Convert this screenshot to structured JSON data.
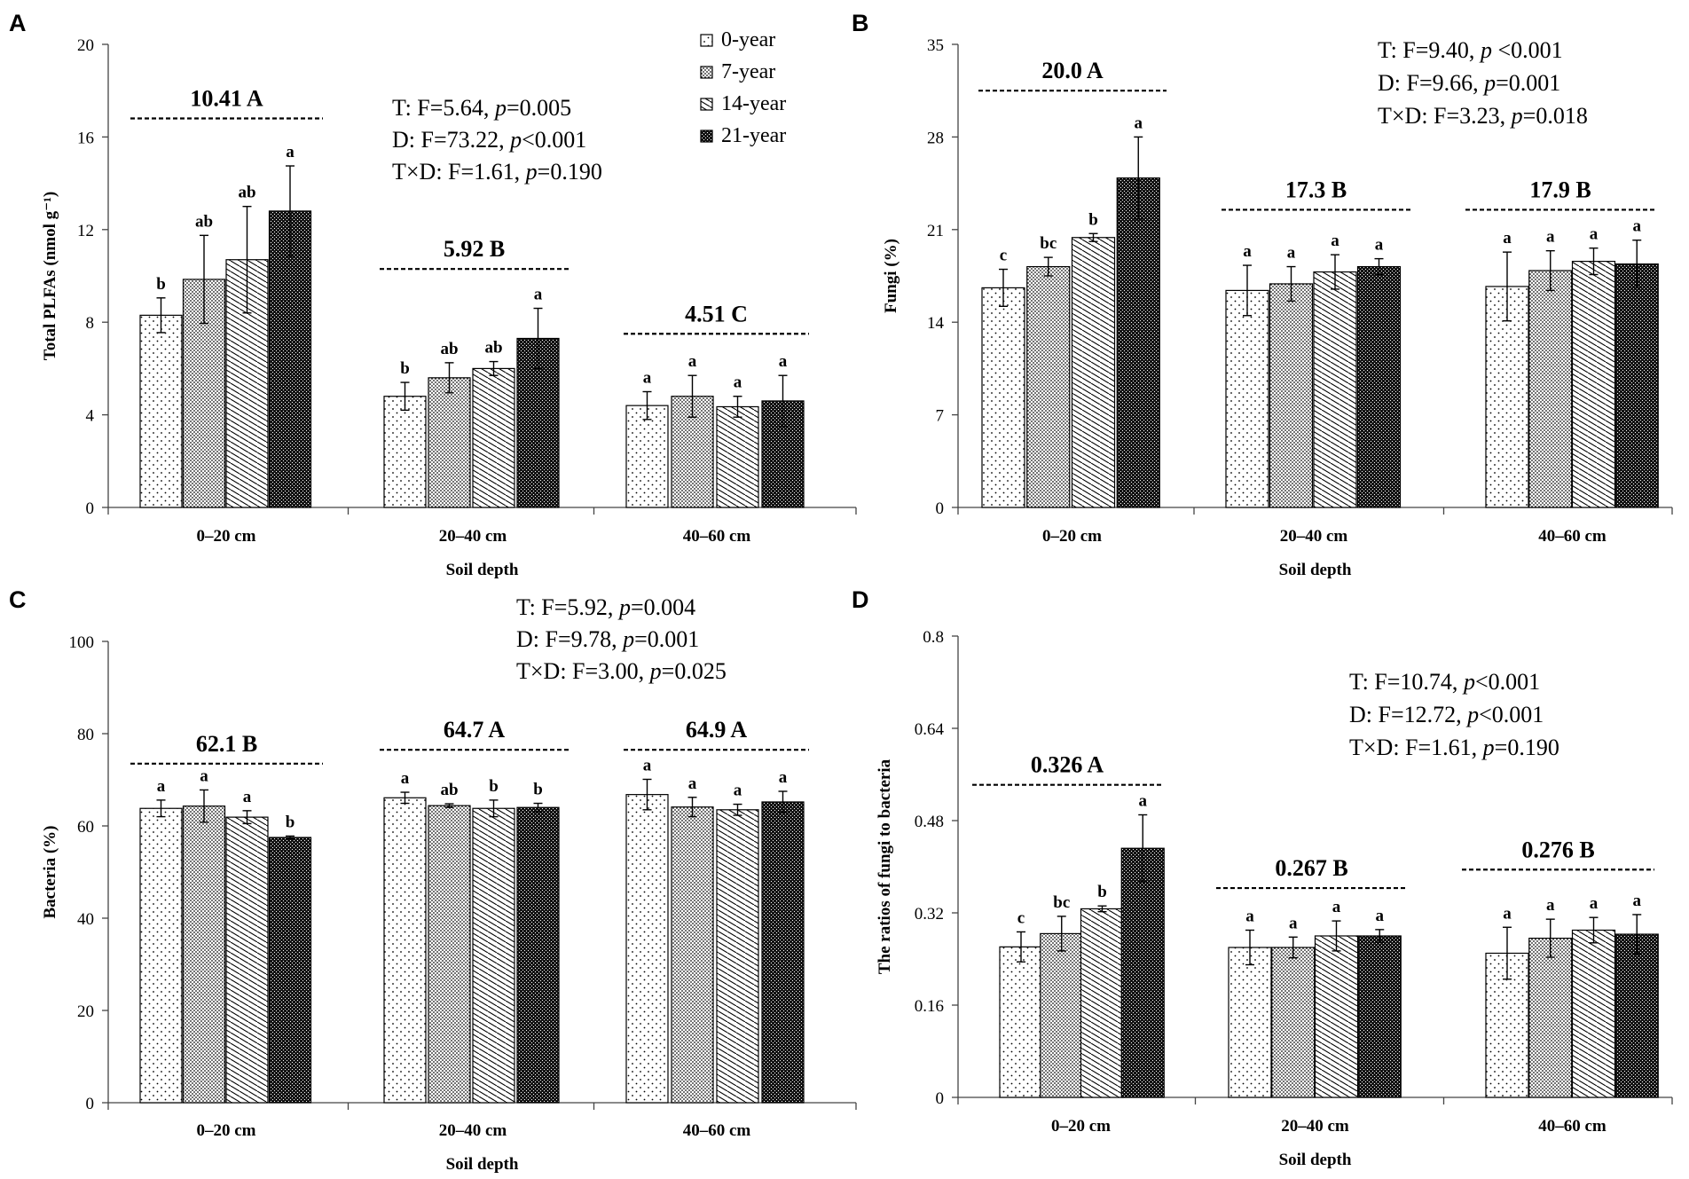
{
  "legend": {
    "labels": [
      "0-year",
      "7-year",
      "14-year",
      "21-year"
    ]
  },
  "chart_data": [
    {
      "panel_label": "A",
      "type": "bar",
      "ylabel": "Total PLFAs (nmol g⁻¹)",
      "xlabel": "Soil depth",
      "ylim": [
        0,
        20
      ],
      "yticks": [
        "0",
        "4",
        "8",
        "12",
        "16",
        "20"
      ],
      "categories": [
        "0–20 cm",
        "20–40 cm",
        "40–60 cm"
      ],
      "series": [
        {
          "name": "0-year",
          "values": [
            8.3,
            4.8,
            4.4
          ],
          "errors": [
            0.75,
            0.6,
            0.6
          ],
          "letters": [
            "b",
            "b",
            "a"
          ]
        },
        {
          "name": "7-year",
          "values": [
            9.85,
            5.6,
            4.8
          ],
          "errors": [
            1.9,
            0.65,
            0.9
          ],
          "letters": [
            "ab",
            "ab",
            "a"
          ]
        },
        {
          "name": "14-year",
          "values": [
            10.7,
            6.0,
            4.35
          ],
          "errors": [
            2.3,
            0.3,
            0.45
          ],
          "letters": [
            "ab",
            "ab",
            "a"
          ]
        },
        {
          "name": "21-year",
          "values": [
            12.8,
            7.3,
            4.6
          ],
          "errors": [
            1.95,
            1.3,
            1.1
          ],
          "letters": [
            "a",
            "a",
            "a"
          ]
        }
      ],
      "group_labels": [
        {
          "text": "10.41 A",
          "y": 16.8
        },
        {
          "text": "5.92 B",
          "y": 10.3
        },
        {
          "text": "4.51 C",
          "y": 7.5
        }
      ],
      "stats": [
        "T: F=5.64, |p|=0.005",
        "D: F=73.22, |p|<0.001",
        "T×D: F=1.61, |p|=0.190"
      ],
      "show_legend": true
    },
    {
      "panel_label": "B",
      "type": "bar",
      "ylabel": "Fungi (%)",
      "xlabel": "Soil depth",
      "ylim": [
        0,
        35
      ],
      "yticks": [
        "0",
        "7",
        "14",
        "21",
        "28",
        "35"
      ],
      "categories": [
        "0–20 cm",
        "20–40 cm",
        "40–60 cm"
      ],
      "series": [
        {
          "name": "0-year",
          "values": [
            16.6,
            16.4,
            16.7
          ],
          "errors": [
            1.4,
            1.9,
            2.6
          ],
          "letters": [
            "c",
            "a",
            "a"
          ]
        },
        {
          "name": "7-year",
          "values": [
            18.2,
            16.9,
            17.9
          ],
          "errors": [
            0.7,
            1.3,
            1.5
          ],
          "letters": [
            "bc",
            "a",
            "a"
          ]
        },
        {
          "name": "14-year",
          "values": [
            20.4,
            17.8,
            18.6
          ],
          "errors": [
            0.3,
            1.3,
            1.0
          ],
          "letters": [
            "b",
            "a",
            "a"
          ]
        },
        {
          "name": "21-year",
          "values": [
            24.9,
            18.2,
            18.4
          ],
          "errors": [
            3.1,
            0.6,
            1.8
          ],
          "letters": [
            "a",
            "a",
            "a"
          ]
        }
      ],
      "group_labels": [
        {
          "text": "20.0 A",
          "y": 31.5
        },
        {
          "text": "17.3 B",
          "y": 22.5
        },
        {
          "text": "17.9 B",
          "y": 22.5
        }
      ],
      "stats": [
        "T: F=9.40, |p| <0.001",
        "D: F=9.66, |p|=0.001",
        "T×D: F=3.23, |p|=0.018"
      ],
      "show_legend": false
    },
    {
      "panel_label": "C",
      "type": "bar",
      "ylabel": "Bacteria (%)",
      "xlabel": "Soil depth",
      "ylim": [
        0,
        100
      ],
      "yticks": [
        "0",
        "20",
        "40",
        "60",
        "80",
        "100"
      ],
      "categories": [
        "0–20 cm",
        "20–40 cm",
        "40–60 cm"
      ],
      "series": [
        {
          "name": "0-year",
          "values": [
            63.8,
            66.1,
            66.8
          ],
          "errors": [
            1.8,
            1.2,
            3.3
          ],
          "letters": [
            "a",
            "a",
            "a"
          ]
        },
        {
          "name": "7-year",
          "values": [
            64.3,
            64.4,
            64.1
          ],
          "errors": [
            3.5,
            0.4,
            2.1
          ],
          "letters": [
            "a",
            "ab",
            "a"
          ]
        },
        {
          "name": "14-year",
          "values": [
            61.9,
            63.8,
            63.5
          ],
          "errors": [
            1.4,
            1.8,
            1.2
          ],
          "letters": [
            "a",
            "b",
            "a"
          ]
        },
        {
          "name": "21-year",
          "values": [
            57.5,
            64.0,
            65.2
          ],
          "errors": [
            0.3,
            0.9,
            2.3
          ],
          "letters": [
            "b",
            "b",
            "a"
          ]
        }
      ],
      "group_labels": [
        {
          "text": "62.1 B",
          "y": 73.5
        },
        {
          "text": "64.7 A",
          "y": 76.5
        },
        {
          "text": "64.9 A",
          "y": 76.5
        }
      ],
      "stats": [
        "T: F=5.92, |p|=0.004",
        "D: F=9.78, |p|=0.001",
        "T×D: F=3.00, |p|=0.025"
      ],
      "show_legend": false
    },
    {
      "panel_label": "D",
      "type": "bar",
      "ylabel": "The ratios of fungi to bacteria",
      "xlabel": "Soil depth",
      "ylim": [
        0,
        0.8
      ],
      "yticks": [
        "0",
        "0.16",
        "0.32",
        "0.48",
        "0.64",
        "0.8"
      ],
      "categories": [
        "0–20 cm",
        "20–40 cm",
        "40–60 cm"
      ],
      "series": [
        {
          "name": "0-year",
          "values": [
            0.261,
            0.26,
            0.25
          ],
          "errors": [
            0.026,
            0.03,
            0.045
          ],
          "letters": [
            "c",
            "a",
            "a"
          ]
        },
        {
          "name": "7-year",
          "values": [
            0.284,
            0.26,
            0.276
          ],
          "errors": [
            0.03,
            0.018,
            0.033
          ],
          "letters": [
            "bc",
            "a",
            "a"
          ]
        },
        {
          "name": "14-year",
          "values": [
            0.327,
            0.28,
            0.29
          ],
          "errors": [
            0.005,
            0.026,
            0.022
          ],
          "letters": [
            "b",
            "a",
            "a"
          ]
        },
        {
          "name": "21-year",
          "values": [
            0.432,
            0.28,
            0.283
          ],
          "errors": [
            0.058,
            0.011,
            0.034
          ],
          "letters": [
            "a",
            "a",
            "a"
          ]
        }
      ],
      "group_labels": [
        {
          "text": "0.326 A",
          "y": 0.542
        },
        {
          "text": "0.267 B",
          "y": 0.363
        },
        {
          "text": "0.276 B",
          "y": 0.395
        }
      ],
      "stats": [
        "T: F=10.74, |p|<0.001",
        "D: F=12.72, |p|<0.001",
        "T×D: F=1.61, |p|=0.190"
      ],
      "show_legend": false
    }
  ]
}
